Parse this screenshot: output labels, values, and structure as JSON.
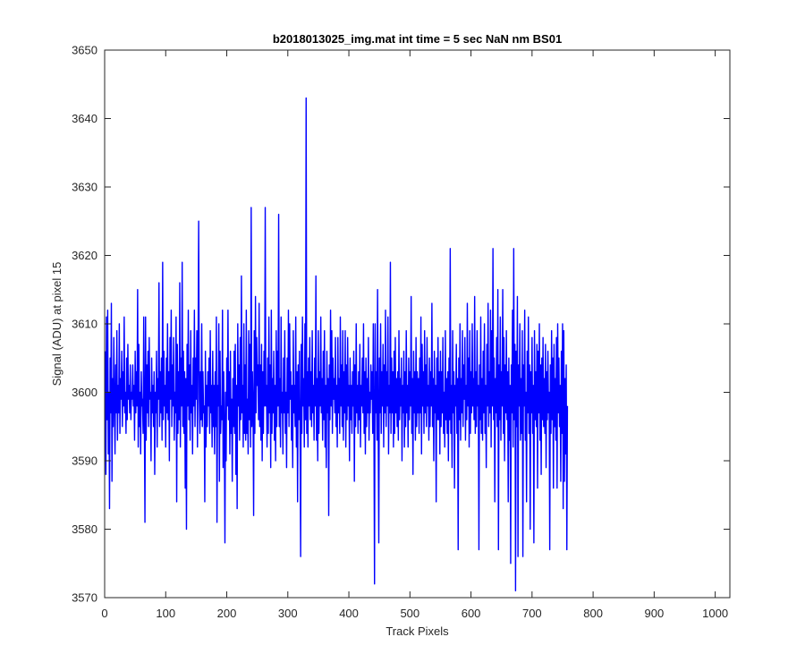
{
  "chart_data": {
    "type": "line",
    "title": "b2018013025_img.mat int time = 5 sec  NaN nm BS01",
    "xlabel": "Track Pixels",
    "ylabel": "Signal (ADU) at pixel 15",
    "xlim": [
      0,
      1024
    ],
    "ylim": [
      3570,
      3650
    ],
    "xticks": [
      0,
      100,
      200,
      300,
      400,
      500,
      600,
      700,
      800,
      900,
      1000
    ],
    "yticks": [
      3570,
      3580,
      3590,
      3600,
      3610,
      3620,
      3630,
      3640,
      3650
    ],
    "grid": false,
    "line_color": "#0000ff",
    "series": [
      {
        "x_start": 1,
        "x_step": 1,
        "values": [
          3606,
          3588,
          3611,
          3596,
          3612,
          3591,
          3600,
          3583,
          3605,
          3597,
          3613,
          3587,
          3602,
          3595,
          3608,
          3599,
          3591,
          3604,
          3597,
          3609,
          3593,
          3601,
          3597,
          3610,
          3594,
          3602,
          3599,
          3606,
          3595,
          3603,
          3598,
          3611,
          3597,
          3600,
          3594,
          3605,
          3596,
          3607,
          3599,
          3601,
          3597,
          3604,
          3596,
          3600,
          3599,
          3604,
          3598,
          3601,
          3593,
          3606,
          3597,
          3603,
          3598,
          3615,
          3592,
          3607,
          3595,
          3600,
          3591,
          3603,
          3598,
          3599,
          3594,
          3611,
          3597,
          3581,
          3611,
          3593,
          3604,
          3597,
          3606,
          3595,
          3608,
          3599,
          3600,
          3590,
          3605,
          3597,
          3601,
          3595,
          3603,
          3588,
          3600,
          3597,
          3606,
          3592,
          3602,
          3599,
          3616,
          3595,
          3603,
          3597,
          3605,
          3593,
          3619,
          3596,
          3606,
          3598,
          3601,
          3592,
          3605,
          3597,
          3610,
          3596,
          3603,
          3590,
          3608,
          3599,
          3612,
          3595,
          3604,
          3598,
          3608,
          3593,
          3600,
          3597,
          3611,
          3584,
          3607,
          3594,
          3603,
          3596,
          3616,
          3592,
          3605,
          3598,
          3619,
          3595,
          3606,
          3594,
          3603,
          3586,
          3602,
          3580,
          3607,
          3598,
          3612,
          3596,
          3604,
          3593,
          3609,
          3597,
          3601,
          3591,
          3605,
          3598,
          3612,
          3595,
          3605,
          3599,
          3609,
          3592,
          3606,
          3625,
          3599,
          3594,
          3603,
          3596,
          3610,
          3595,
          3603,
          3597,
          3598,
          3584,
          3606,
          3592,
          3601,
          3595,
          3603,
          3598,
          3605,
          3594,
          3609,
          3597,
          3601,
          3592,
          3606,
          3595,
          3601,
          3591,
          3603,
          3595,
          3611,
          3581,
          3601,
          3598,
          3610,
          3587,
          3606,
          3594,
          3598,
          3596,
          3612,
          3589,
          3603,
          3595,
          3578,
          3600,
          3590,
          3605,
          3598,
          3612,
          3596,
          3603,
          3591,
          3606,
          3594,
          3599,
          3587,
          3602,
          3595,
          3606,
          3594,
          3607,
          3588,
          3601,
          3583,
          3610,
          3598,
          3604,
          3593,
          3608,
          3596,
          3617,
          3597,
          3601,
          3592,
          3610,
          3594,
          3604,
          3593,
          3612,
          3594,
          3599,
          3591,
          3609,
          3596,
          3607,
          3592,
          3627,
          3595,
          3603,
          3598,
          3582,
          3609,
          3594,
          3614,
          3597,
          3608,
          3601,
          3604,
          3596,
          3613,
          3595,
          3604,
          3593,
          3607,
          3590,
          3603,
          3594,
          3606,
          3598,
          3627,
          3598,
          3601,
          3592,
          3605,
          3594,
          3611,
          3597,
          3604,
          3589,
          3612,
          3594,
          3602,
          3597,
          3606,
          3593,
          3601,
          3590,
          3609,
          3595,
          3606,
          3598,
          3626,
          3595,
          3602,
          3592,
          3611,
          3597,
          3600,
          3591,
          3605,
          3597,
          3609,
          3594,
          3600,
          3589,
          3605,
          3597,
          3612,
          3595,
          3610,
          3599,
          3603,
          3593,
          3601,
          3589,
          3609,
          3597,
          3601,
          3595,
          3611,
          3592,
          3603,
          3584,
          3604,
          3596,
          3606,
          3595,
          3576,
          3607,
          3594,
          3611,
          3598,
          3602,
          3592,
          3610,
          3596,
          3643,
          3594,
          3603,
          3592,
          3605,
          3598,
          3608,
          3596,
          3603,
          3595,
          3609,
          3597,
          3601,
          3593,
          3605,
          3598,
          3617,
          3593,
          3602,
          3590,
          3609,
          3594,
          3603,
          3598,
          3611,
          3597,
          3602,
          3593,
          3606,
          3596,
          3609,
          3592,
          3601,
          3589,
          3606,
          3597,
          3602,
          3582,
          3604,
          3596,
          3612,
          3598,
          3609,
          3594,
          3605,
          3599,
          3602,
          3597,
          3608,
          3595,
          3601,
          3592,
          3608,
          3597,
          3602,
          3594,
          3611,
          3598,
          3604,
          3595,
          3609,
          3593,
          3603,
          3597,
          3609,
          3592,
          3604,
          3596,
          3608,
          3598,
          3601,
          3590,
          3605,
          3596,
          3601,
          3594,
          3603,
          3598,
          3606,
          3587,
          3604,
          3595,
          3610,
          3597,
          3601,
          3594,
          3603,
          3596,
          3607,
          3592,
          3601,
          3598,
          3605,
          3597,
          3610,
          3594,
          3603,
          3591,
          3605,
          3595,
          3602,
          3597,
          3608,
          3593,
          3600,
          3597,
          3604,
          3599,
          3603,
          3594,
          3610,
          3596,
          3572,
          3610,
          3597,
          3603,
          3593,
          3615,
          3596,
          3578,
          3605,
          3597,
          3610,
          3594,
          3603,
          3598,
          3607,
          3592,
          3604,
          3597,
          3612,
          3595,
          3603,
          3598,
          3611,
          3591,
          3601,
          3597,
          3619,
          3594,
          3605,
          3597,
          3603,
          3592,
          3606,
          3594,
          3608,
          3597,
          3602,
          3595,
          3603,
          3593,
          3609,
          3596,
          3602,
          3598,
          3605,
          3590,
          3601,
          3597,
          3606,
          3592,
          3603,
          3595,
          3609,
          3597,
          3601,
          3592,
          3605,
          3596,
          3603,
          3598,
          3614,
          3594,
          3602,
          3588,
          3606,
          3597,
          3603,
          3593,
          3608,
          3595,
          3603,
          3597,
          3602,
          3594,
          3605,
          3597,
          3611,
          3591,
          3607,
          3598,
          3603,
          3594,
          3609,
          3597,
          3604,
          3595,
          3608,
          3598,
          3601,
          3593,
          3605,
          3595,
          3603,
          3598,
          3613,
          3595,
          3602,
          3590,
          3606,
          3597,
          3601,
          3584,
          3605,
          3596,
          3608,
          3596,
          3603,
          3591,
          3606,
          3595,
          3603,
          3597,
          3608,
          3594,
          3600,
          3592,
          3609,
          3596,
          3602,
          3594,
          3603,
          3590,
          3605,
          3596,
          3621,
          3594,
          3601,
          3589,
          3609,
          3597,
          3603,
          3586,
          3601,
          3598,
          3607,
          3594,
          3602,
          3577,
          3605,
          3596,
          3610,
          3593,
          3602,
          3597,
          3609,
          3595,
          3604,
          3599,
          3608,
          3593,
          3601,
          3596,
          3613,
          3598,
          3605,
          3592,
          3609,
          3594,
          3603,
          3597,
          3610,
          3598,
          3602,
          3596,
          3614,
          3594,
          3603,
          3595,
          3609,
          3598,
          3601,
          3577,
          3604,
          3596,
          3611,
          3594,
          3602,
          3593,
          3606,
          3597,
          3610,
          3594,
          3601,
          3589,
          3607,
          3598,
          3613,
          3595,
          3603,
          3597,
          3612,
          3592,
          3609,
          3598,
          3621,
          3596,
          3605,
          3584,
          3602,
          3597,
          3608,
          3595,
          3615,
          3577,
          3604,
          3596,
          3611,
          3593,
          3603,
          3598,
          3615,
          3594,
          3608,
          3590,
          3604,
          3597,
          3609,
          3596,
          3603,
          3584,
          3605,
          3593,
          3601,
          3575,
          3604,
          3597,
          3612,
          3592,
          3621,
          3596,
          3607,
          3571,
          3606,
          3595,
          3614,
          3576,
          3604,
          3598,
          3610,
          3593,
          3602,
          3594,
          3609,
          3576,
          3604,
          3598,
          3612,
          3593,
          3600,
          3584,
          3606,
          3597,
          3611,
          3594,
          3604,
          3580,
          3603,
          3597,
          3608,
          3594,
          3601,
          3578,
          3609,
          3596,
          3603,
          3595,
          3607,
          3586,
          3606,
          3597,
          3610,
          3593,
          3604,
          3588,
          3605,
          3596,
          3608,
          3595,
          3602,
          3594,
          3607,
          3589,
          3603,
          3596,
          3606,
          3597,
          3600,
          3577,
          3604,
          3594,
          3609,
          3596,
          3605,
          3586,
          3607,
          3595,
          3602,
          3593,
          3608,
          3586,
          3610,
          3597,
          3605,
          3595,
          3601,
          3587,
          3606,
          3594,
          3610,
          3583,
          3609,
          3587,
          3602,
          3591,
          3604,
          3577,
          3598
        ]
      }
    ]
  }
}
